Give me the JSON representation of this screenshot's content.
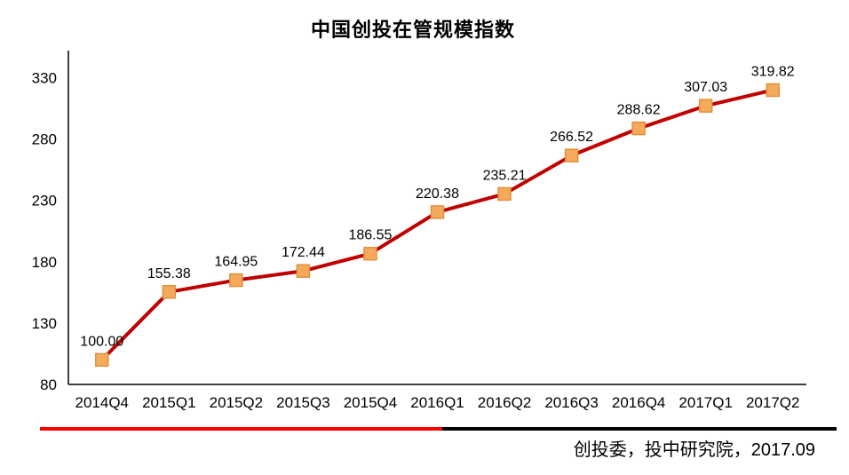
{
  "chart": {
    "title": "中国创投在管规模指数"
  },
  "chart_data": {
    "type": "line",
    "title": "中国创投在管规模指数",
    "categories": [
      "2014Q4",
      "2015Q1",
      "2015Q2",
      "2015Q3",
      "2015Q4",
      "2016Q1",
      "2016Q2",
      "2016Q3",
      "2016Q4",
      "2017Q1",
      "2017Q2"
    ],
    "values": [
      100.0,
      155.38,
      164.95,
      172.44,
      186.55,
      220.38,
      235.21,
      266.52,
      288.62,
      307.03,
      319.82
    ],
    "data_labels": [
      "100.00",
      "155.38",
      "164.95",
      "172.44",
      "186.55",
      "220.38",
      "235.21",
      "266.52",
      "288.62",
      "307.03",
      "319.82"
    ],
    "xlabel": "",
    "ylabel": "",
    "ylim": [
      80,
      352
    ],
    "yticks": [
      80,
      130,
      180,
      230,
      280,
      330
    ],
    "grid": false,
    "legend": "none",
    "line_color": "#C00000",
    "marker_fill": "#F5A95B",
    "marker_border": "#E0913C",
    "axis_color": "#000000",
    "label_color": "#000000"
  },
  "footer": {
    "rule_red_color": "#FF0000",
    "rule_black_color": "#000000",
    "source_text": "创投委，投中研究院，2017.09"
  }
}
